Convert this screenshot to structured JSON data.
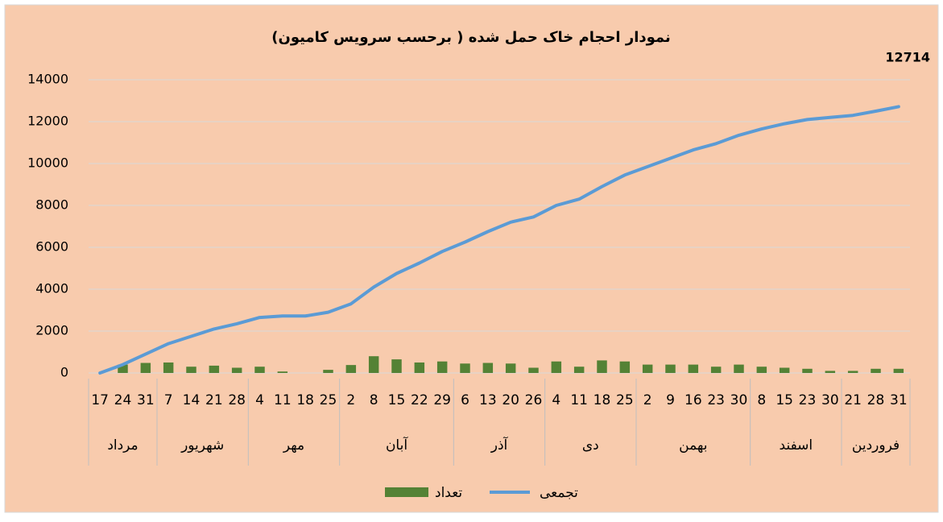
{
  "chart_data": {
    "type": "combo",
    "title": "نمودار احجام خاک حمل شده ( برحسب سرویس کامیون)",
    "annotation": "12714",
    "categories": [
      "17",
      "24",
      "31",
      "7",
      "14",
      "21",
      "28",
      "4",
      "11",
      "18",
      "25",
      "2",
      "8",
      "15",
      "22",
      "29",
      "6",
      "13",
      "20",
      "26",
      "4",
      "11",
      "18",
      "25",
      "2",
      "9",
      "16",
      "23",
      "30",
      "8",
      "15",
      "23",
      "30",
      "21",
      "28",
      "31"
    ],
    "groups": [
      {
        "label": "مرداد",
        "span": 3
      },
      {
        "label": "شهریور",
        "span": 4
      },
      {
        "label": "مهر",
        "span": 4
      },
      {
        "label": "آبان",
        "span": 5
      },
      {
        "label": "آذر",
        "span": 4
      },
      {
        "label": "دی",
        "span": 4
      },
      {
        "label": "بهمن",
        "span": 5
      },
      {
        "label": "اسفند",
        "span": 4
      },
      {
        "label": "فروردین",
        "span": 3
      }
    ],
    "series": [
      {
        "name": "تعداد",
        "type": "bar",
        "color": "#548235",
        "values": [
          0,
          400,
          480,
          500,
          300,
          350,
          250,
          300,
          70,
          0,
          150,
          380,
          800,
          650,
          500,
          550,
          450,
          480,
          450,
          250,
          550,
          300,
          600,
          550,
          400,
          400,
          400,
          300,
          400,
          300,
          250,
          200,
          100,
          100,
          200,
          200
        ]
      },
      {
        "name": "تجمعی",
        "type": "line",
        "color": "#5b9bd5",
        "values": [
          0,
          400,
          900,
          1400,
          1750,
          2100,
          2350,
          2650,
          2720,
          2720,
          2900,
          3300,
          4100,
          4750,
          5250,
          5800,
          6250,
          6750,
          7200,
          7450,
          8000,
          8300,
          8900,
          9450,
          9850,
          10250,
          10650,
          10950,
          11350,
          11650,
          11900,
          12100,
          12200,
          12300,
          12500,
          12714
        ]
      }
    ],
    "ylim": [
      0,
      14000
    ],
    "yticks": [
      0,
      2000,
      4000,
      6000,
      8000,
      10000,
      12000,
      14000
    ],
    "grid": true
  }
}
